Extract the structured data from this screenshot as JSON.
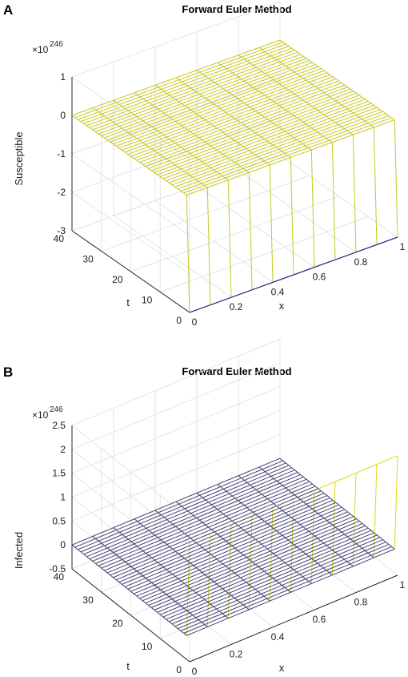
{
  "figure": {
    "panels": [
      {
        "panel_label": "A",
        "title": "Forward Euler Method",
        "zlabel": "Susceptible",
        "xlabel": "x",
        "ylabel": "t",
        "exponent_base": "×10",
        "exponent_power": "246",
        "z_tick_labels": [
          "-3",
          "-2",
          "-1",
          "0",
          "1"
        ],
        "x_tick_labels": [
          "0",
          "0.2",
          "0.4",
          "0.6",
          "0.8",
          "1"
        ],
        "t_tick_labels": [
          "0",
          "10",
          "20",
          "30",
          "40"
        ]
      },
      {
        "panel_label": "B",
        "title": "Forward Euler Method",
        "zlabel": "Infected",
        "xlabel": "x",
        "ylabel": "t",
        "exponent_base": "×10",
        "exponent_power": "246",
        "z_tick_labels": [
          "-0.5",
          "0",
          "0.5",
          "1",
          "1.5",
          "2",
          "2.5"
        ],
        "x_tick_labels": [
          "0",
          "0.2",
          "0.4",
          "0.6",
          "0.8",
          "1"
        ],
        "t_tick_labels": [
          "0",
          "10",
          "20",
          "30",
          "40"
        ]
      }
    ]
  },
  "chart_data": [
    {
      "type": "surface",
      "title": "Forward Euler Method",
      "xlabel": "x",
      "ylabel": "t",
      "zlabel": "Susceptible",
      "z_scale": "×10^246",
      "xlim": [
        0,
        1
      ],
      "ylim": [
        0,
        40
      ],
      "zlim": [
        -3,
        1
      ],
      "grid": true,
      "colormap": [
        "#1f1f8f",
        "#ffff00"
      ],
      "x": [
        0,
        0.1,
        0.2,
        0.3,
        0.4,
        0.5,
        0.6,
        0.7,
        0.8,
        0.9,
        1
      ],
      "t": [
        0,
        1,
        2,
        3,
        4,
        5,
        6,
        7,
        8,
        9,
        10,
        11,
        12,
        13,
        14,
        15,
        16,
        17,
        18,
        19,
        20,
        21,
        22,
        23,
        24,
        25,
        26,
        27,
        28,
        29,
        30,
        31,
        32,
        33,
        34,
        35,
        36,
        37,
        38,
        39,
        40
      ],
      "z_at_t0": [
        -3,
        -3,
        -3,
        -3,
        -3,
        -3,
        -3,
        -3,
        -3,
        -3,
        -3
      ],
      "z_for_t_ge_1": 0
    },
    {
      "type": "surface",
      "title": "Forward Euler Method",
      "xlabel": "x",
      "ylabel": "t",
      "zlabel": "Infected",
      "z_scale": "×10^246",
      "xlim": [
        0,
        1
      ],
      "ylim": [
        0,
        40
      ],
      "zlim": [
        -0.5,
        2.5
      ],
      "grid": true,
      "colormap": [
        "#1f1f8f",
        "#ffff00"
      ],
      "x": [
        0,
        0.1,
        0.2,
        0.3,
        0.4,
        0.5,
        0.6,
        0.7,
        0.8,
        0.9,
        1
      ],
      "t": [
        0,
        1,
        2,
        3,
        4,
        5,
        6,
        7,
        8,
        9,
        10,
        11,
        12,
        13,
        14,
        15,
        16,
        17,
        18,
        19,
        20,
        21,
        22,
        23,
        24,
        25,
        26,
        27,
        28,
        29,
        30,
        31,
        32,
        33,
        34,
        35,
        36,
        37,
        38,
        39,
        40
      ],
      "z_at_t0": [
        2,
        2,
        2,
        2,
        2,
        2,
        2,
        2,
        2,
        2,
        2
      ],
      "z_for_t_ge_1": 0
    }
  ]
}
